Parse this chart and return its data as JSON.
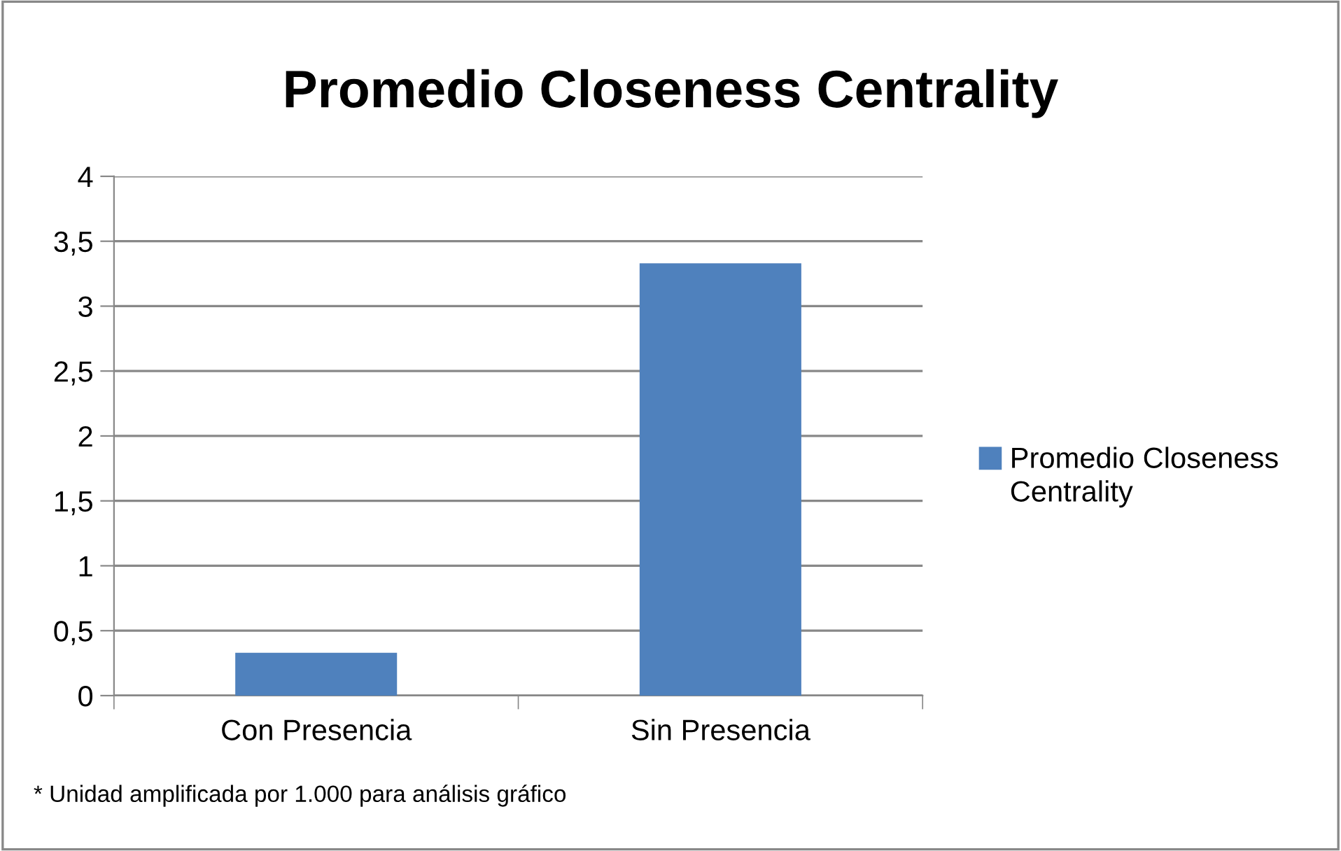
{
  "chart_data": {
    "type": "bar",
    "title": "Promedio Closeness Centrality",
    "categories": [
      "Con Presencia",
      "Sin Presencia"
    ],
    "series": [
      {
        "name": "Promedio Closeness Centrality",
        "color": "#4f81bd",
        "values": [
          0.33,
          3.33
        ]
      }
    ],
    "ylim": [
      0,
      4
    ],
    "yticks": [
      0,
      {
        "value": 0.5,
        "label": "0,5"
      },
      1,
      {
        "value": 1.5,
        "label": "1,5"
      },
      2,
      {
        "value": 2.5,
        "label": "2,5"
      },
      3,
      {
        "value": 3.5,
        "label": "3,5"
      },
      4
    ],
    "grid": "y",
    "legend": "right",
    "annotations": [
      "* Unidad amplificada por 1.000 para análisis gráfico"
    ]
  }
}
